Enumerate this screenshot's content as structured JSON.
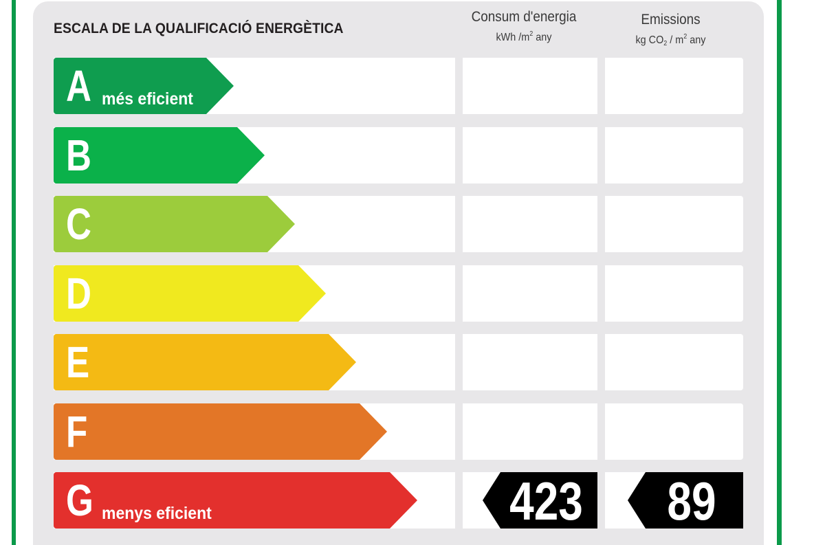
{
  "title": "ESCALA DE LA QUALIFICACIÓ ENERGÈTICA",
  "columns": {
    "energy": {
      "title": "Consum d'energia",
      "unit_prefix": "kWh /m",
      "unit_sup": "2",
      "unit_suffix": " any"
    },
    "emissions": {
      "title": "Emissions",
      "unit_prefix": "kg CO",
      "unit_sub": "2",
      "unit_mid": " / m",
      "unit_sup": "2",
      "unit_suffix": " any"
    }
  },
  "rating_rows": [
    {
      "letter": "A",
      "label": "més eficient",
      "color": "#0f9d4f"
    },
    {
      "letter": "B",
      "label": "",
      "color": "#0bb14a"
    },
    {
      "letter": "C",
      "label": "",
      "color": "#9ccc3c"
    },
    {
      "letter": "D",
      "label": "",
      "color": "#f0e91f"
    },
    {
      "letter": "E",
      "label": "",
      "color": "#f4ba14"
    },
    {
      "letter": "F",
      "label": "",
      "color": "#e37627"
    },
    {
      "letter": "G",
      "label": "menys eficient",
      "color": "#e3302d"
    }
  ],
  "result": {
    "rating": "G",
    "energy_value": "423",
    "emissions_value": "89"
  },
  "border_color": "#0b9a4a"
}
